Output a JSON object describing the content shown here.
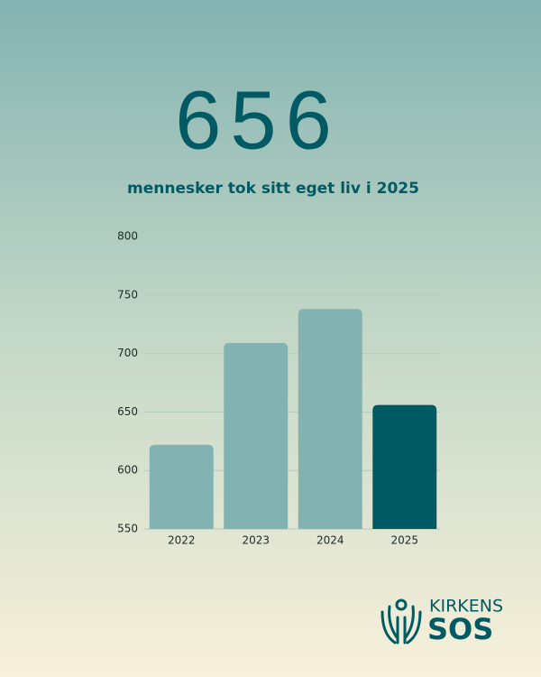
{
  "header": {
    "headline": "656",
    "subtitle": "mennesker tok sitt eget liv i 2025"
  },
  "chart_data": {
    "type": "bar",
    "categories": [
      "2022",
      "2023",
      "2024",
      "2025"
    ],
    "values": [
      622,
      709,
      738,
      656
    ],
    "colors": [
      "#82b2b1",
      "#82b2b1",
      "#82b2b1",
      "#005a63"
    ],
    "ylim": [
      550,
      800
    ],
    "yticks": [
      550,
      600,
      650,
      700,
      750,
      800
    ],
    "grid": true
  },
  "logo": {
    "line1": "KIRKENS",
    "line2": "SOS"
  }
}
